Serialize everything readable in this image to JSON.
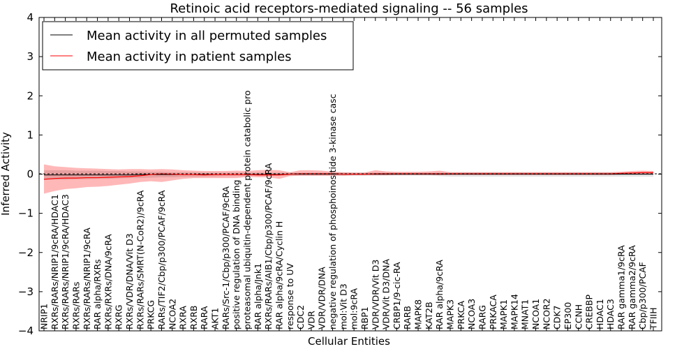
{
  "chart_data": {
    "type": "line",
    "title": "Retinoic acid receptors-mediated signaling -- 56 samples",
    "xlabel": "Cellular Entities",
    "ylabel": "Inferred Activity",
    "ylim": [
      -4,
      4
    ],
    "yticks": [
      "4",
      "3",
      "2",
      "1",
      "0",
      "−1",
      "−2",
      "−3",
      "−4"
    ],
    "ytick_values": [
      4,
      3,
      2,
      1,
      0,
      -1,
      -2,
      -3,
      -4
    ],
    "grid": false,
    "legend_position": "top-left",
    "categories": [
      "NRIP1",
      "RXRs/RARs/NRIP1/9cRA/HDAC1",
      "RXRs/RARs/NRIP1/9cRA/HDAC3",
      "RXRs/RARs",
      "RXRs/RARs/NRIP1/9cRA",
      "RAR alpha/RXRs",
      "RXRs/RXRs/DNA/9cRA",
      "RXRG",
      "RXRs/VDR/DNA/Vit D3",
      "RXRs/RARs/SMRT(N-CoR2)/9cRA",
      "PRKCG",
      "RARs/TIF2/Cbp/p300/PCAF/9cRA",
      "NCOA2",
      "RXRA",
      "RXRB",
      "RARA",
      "AKT1",
      "RARs/Src-1/Cbp/p300/PCAF/9cRA",
      "positive regulation of DNA binding",
      "proteasomal ubiquitin-dependent protein catabolic pro",
      "RAR alpha/Jnk1",
      "RXRs/RARs/AIB1/Cbp/p300/PCAF/9cRA",
      "RAR alpha/9cRA/Cyclin H",
      "response to UV",
      "CDC2",
      "VDR",
      "VDR/VDR/DNA",
      "negative regulation of phosphoinositide 3-kinase casc",
      "mol:Vit D3",
      "mol:9cRA",
      "RBP1",
      "VDR/VDR/Vit D3",
      "VDR/Vit D3/DNA",
      "CRBP1/9-cic-RA",
      "RARB",
      "MAPK8",
      "KAT2B",
      "RAR alpha/9cRA",
      "MAPK3",
      "PRKCA",
      "NCOA3",
      "RARG",
      "PRKACA",
      "MAPK1",
      "MAPK14",
      "MNAT1",
      "NCOA1",
      "NCOR2",
      "CDK7",
      "EP300",
      "CCNH",
      "CREBBP",
      "HDAC1",
      "HDAC3",
      "RAR gamma1/9cRA",
      "RAR gamma2/9cRA",
      "Cbp/p300/PCAF",
      "TFIIH"
    ],
    "series": [
      {
        "name": "Mean activity in all permuted samples",
        "color": "#000000",
        "values": [
          -0.02,
          -0.02,
          -0.02,
          -0.02,
          -0.02,
          -0.02,
          -0.02,
          -0.02,
          -0.02,
          -0.01,
          -0.01,
          -0.01,
          -0.01,
          -0.01,
          -0.01,
          -0.01,
          -0.01,
          -0.01,
          -0.01,
          -0.01,
          -0.01,
          -0.01,
          -0.01,
          0,
          0,
          0,
          0,
          0,
          0,
          0,
          0,
          0,
          0,
          0,
          0,
          0,
          0,
          0,
          0,
          0,
          0,
          0,
          0,
          0,
          0,
          0,
          0,
          0,
          0,
          0,
          0,
          0,
          0,
          0,
          0,
          0,
          0,
          0
        ],
        "band_lower": [
          -0.15,
          -0.14,
          -0.14,
          -0.13,
          -0.13,
          -0.12,
          -0.12,
          -0.11,
          -0.1,
          -0.1,
          -0.09,
          -0.08,
          -0.08,
          -0.07,
          -0.07,
          -0.06,
          -0.06,
          -0.05,
          -0.05,
          -0.05,
          -0.04,
          -0.04,
          -0.04,
          -0.04,
          -0.04,
          -0.04,
          -0.04,
          -0.04,
          -0.04,
          -0.04,
          -0.04,
          -0.04,
          -0.04,
          -0.04,
          -0.04,
          -0.04,
          -0.04,
          -0.05,
          -0.06,
          -0.06,
          -0.06,
          -0.06,
          -0.06,
          -0.06,
          -0.06,
          -0.06,
          -0.06,
          -0.06,
          -0.06,
          -0.06,
          -0.06,
          -0.06,
          -0.06,
          -0.06,
          -0.06,
          -0.06,
          -0.06,
          -0.06
        ],
        "band_upper": [
          0.1,
          0.1,
          0.1,
          0.09,
          0.09,
          0.09,
          0.08,
          0.08,
          0.07,
          0.07,
          0.06,
          0.06,
          0.05,
          0.05,
          0.05,
          0.04,
          0.04,
          0.04,
          0.04,
          0.04,
          0.04,
          0.04,
          0.04,
          0.04,
          0.04,
          0.04,
          0.04,
          0.04,
          0.04,
          0.04,
          0.04,
          0.04,
          0.04,
          0.04,
          0.04,
          0.04,
          0.04,
          0.04,
          0.05,
          0.05,
          0.05,
          0.05,
          0.05,
          0.05,
          0.05,
          0.05,
          0.05,
          0.05,
          0.05,
          0.05,
          0.05,
          0.05,
          0.05,
          0.05,
          0.05,
          0.05,
          0.05,
          0.05
        ]
      },
      {
        "name": "Mean activity in patient samples",
        "color": "#ff0000",
        "values": [
          -0.13,
          -0.11,
          -0.1,
          -0.1,
          -0.09,
          -0.09,
          -0.08,
          -0.07,
          -0.06,
          -0.04,
          -0.01,
          0.01,
          0,
          -0.01,
          -0.01,
          -0.02,
          -0.01,
          -0.01,
          -0.01,
          -0.01,
          -0.02,
          -0.02,
          -0.02,
          0,
          0.01,
          0.01,
          0.01,
          0.01,
          0,
          0,
          0,
          0.01,
          0.01,
          0.01,
          0.01,
          0.01,
          0.01,
          0.01,
          0.01,
          0.01,
          0.01,
          0.01,
          0.01,
          0.01,
          0.01,
          0.01,
          0.01,
          0.01,
          0.01,
          0.01,
          0.01,
          0.01,
          0.01,
          0.01,
          0.02,
          0.03,
          0.04,
          0.04
        ],
        "band_lower": [
          -0.5,
          -0.43,
          -0.38,
          -0.36,
          -0.33,
          -0.32,
          -0.3,
          -0.27,
          -0.24,
          -0.2,
          -0.18,
          -0.2,
          -0.16,
          -0.12,
          -0.1,
          -0.1,
          -0.1,
          -0.1,
          -0.1,
          -0.07,
          -0.08,
          -0.08,
          -0.12,
          -0.05,
          -0.04,
          -0.04,
          -0.04,
          -0.04,
          -0.04,
          -0.03,
          -0.03,
          -0.03,
          -0.03,
          -0.02,
          -0.02,
          -0.02,
          -0.02,
          -0.03,
          -0.02,
          -0.02,
          -0.02,
          -0.02,
          -0.02,
          -0.02,
          -0.02,
          -0.02,
          -0.02,
          -0.02,
          -0.02,
          -0.02,
          -0.02,
          -0.02,
          -0.02,
          -0.02,
          -0.01,
          0,
          0.01,
          0.01
        ],
        "band_upper": [
          0.25,
          0.2,
          0.18,
          0.16,
          0.15,
          0.14,
          0.13,
          0.12,
          0.13,
          0.13,
          0.12,
          0.13,
          0.12,
          0.1,
          0.09,
          0.08,
          0.08,
          0.08,
          0.09,
          0.08,
          0.1,
          0.11,
          0.1,
          0.05,
          0.1,
          0.1,
          0.09,
          0.06,
          0.05,
          0.04,
          0.04,
          0.1,
          0.07,
          0.06,
          0.06,
          0.06,
          0.07,
          0.09,
          0.05,
          0.05,
          0.05,
          0.05,
          0.05,
          0.05,
          0.05,
          0.05,
          0.05,
          0.05,
          0.05,
          0.05,
          0.05,
          0.05,
          0.05,
          0.05,
          0.06,
          0.08,
          0.09,
          0.08
        ]
      }
    ]
  }
}
